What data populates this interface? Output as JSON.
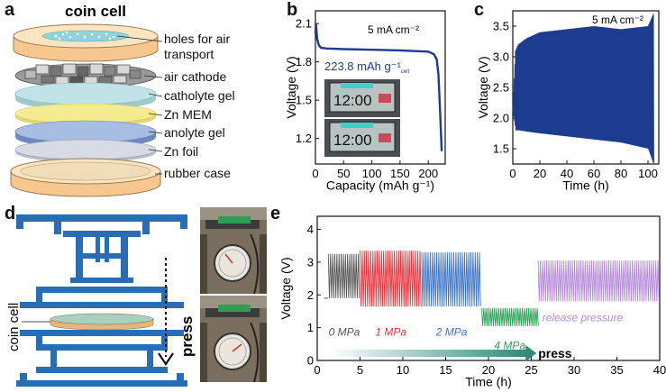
{
  "panels": {
    "a": "a",
    "b": "b",
    "c": "c",
    "d": "d",
    "e": "e"
  },
  "colors": {
    "navy": "#1d3b8f",
    "panel_d_blue": "#2a6db5",
    "orange_case": "#f6c78e",
    "catholyte": "#bfe3e6",
    "membrane": "#f5ec92",
    "anolyte": "#a8bde3",
    "zinc": "#d7dbe5",
    "phase_colors": [
      "#555555",
      "#e8333a",
      "#3b73c9",
      "#2aa055",
      "#b38ad9"
    ]
  },
  "panel_a": {
    "title": "coin cell",
    "labels": [
      "holes for air",
      "transport",
      "air cathode",
      "catholyte gel",
      "Zn MEM",
      "anolyte gel",
      "Zn foil",
      "rubber case"
    ]
  },
  "chart_data": [
    {
      "type": "line",
      "panel": "b",
      "xlabel": "Capacity (mAh g⁻¹)",
      "ylabel": "Voltage (V)",
      "xlim": [
        0,
        230
      ],
      "ylim": [
        1.0,
        2.2
      ],
      "xticks": [
        0,
        50,
        100,
        150,
        200
      ],
      "yticks": [
        1.2,
        1.5,
        1.8,
        2.1
      ],
      "annotation": "5 mA cm⁻²",
      "capacity_label": "223.8 mAh g⁻¹",
      "capacity_label_subscript": "cell",
      "inset_display": [
        "12:00",
        "12:00"
      ],
      "series": [
        {
          "x": [
            0,
            1,
            3,
            6,
            10,
            20,
            50,
            100,
            150,
            200,
            210,
            215,
            218,
            221,
            223.8
          ],
          "y": [
            2.02,
            2.1,
            1.98,
            1.93,
            1.91,
            1.905,
            1.9,
            1.895,
            1.89,
            1.88,
            1.86,
            1.82,
            1.7,
            1.4,
            1.1
          ]
        }
      ]
    },
    {
      "type": "line",
      "panel": "c",
      "xlabel": "Time (h)",
      "ylabel": "Voltage (V)",
      "xlim": [
        0,
        108
      ],
      "ylim": [
        1.25,
        3.75
      ],
      "xticks": [
        0,
        20,
        40,
        60,
        80,
        100
      ],
      "yticks": [
        1.5,
        2.0,
        2.5,
        3.0,
        3.5
      ],
      "annotation": "5 mA cm⁻²",
      "series": [
        {
          "x": [
            0,
            2,
            4,
            10,
            20,
            40,
            60,
            80,
            100,
            104
          ],
          "y_upper": [
            2.2,
            3.1,
            3.2,
            3.3,
            3.4,
            3.45,
            3.5,
            3.45,
            3.5,
            3.7
          ],
          "y_lower": [
            2.1,
            1.8,
            1.8,
            1.78,
            1.75,
            1.7,
            1.65,
            1.6,
            1.5,
            1.25
          ]
        }
      ]
    },
    {
      "type": "line",
      "panel": "e",
      "xlabel": "Time (h)",
      "ylabel": "Voltage (V)",
      "xlim": [
        0,
        40
      ],
      "ylim": [
        0,
        4.4
      ],
      "xticks": [
        0,
        5,
        10,
        15,
        20,
        25,
        30,
        35,
        40
      ],
      "yticks": [
        0,
        1,
        2,
        3,
        4
      ],
      "phases": [
        {
          "name": "0 MPa",
          "x0": 1.3,
          "x1": 5.0,
          "upper": 3.25,
          "lower": 1.9
        },
        {
          "name": "1 MPa",
          "x0": 5.0,
          "x1": 12.2,
          "upper": 3.35,
          "lower": 1.65
        },
        {
          "name": "2 MPa",
          "x0": 12.2,
          "x1": 19.2,
          "upper": 3.3,
          "lower": 1.65
        },
        {
          "name": "4 MPa",
          "x0": 19.2,
          "x1": 25.8,
          "upper": 1.6,
          "lower": 1.05
        },
        {
          "name": "release pressure",
          "x0": 25.8,
          "x1": 40,
          "upper": 3.05,
          "lower": 1.8
        }
      ],
      "press_label": "press"
    }
  ],
  "panel_d": {
    "side_label": "coin cell",
    "press_label": "press"
  }
}
